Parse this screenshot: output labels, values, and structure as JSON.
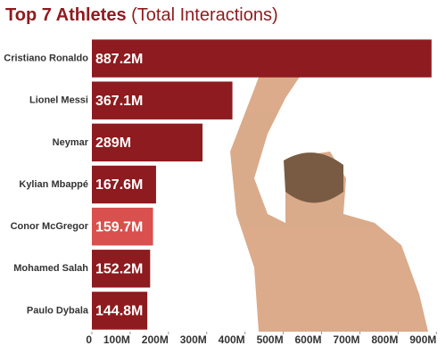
{
  "chart_data": {
    "type": "hbar",
    "title": "Top 7 Athletes",
    "subtitle": "(Total Interactions)",
    "categories": [
      "Cristiano Ronaldo",
      "Lionel Messi",
      "Neymar",
      "Kylian Mbappé",
      "Conor McGregor",
      "Mohamed Salah",
      "Paulo Dybala"
    ],
    "values": [
      887.2,
      367.1,
      289,
      167.6,
      159.7,
      152.2,
      144.8
    ],
    "value_labels": [
      "887.2M",
      "367.1M",
      "289M",
      "167.6M",
      "159.7M",
      "152.2M",
      "144.8M"
    ],
    "colors": [
      "#8e1b1f",
      "#8e1b1f",
      "#8e1b1f",
      "#8e1b1f",
      "#d9504e",
      "#8e1b1f",
      "#8e1b1f"
    ],
    "xlim": [
      0,
      925
    ],
    "xticks": [
      0,
      {
        "value": 100,
        "label": "100M"
      },
      {
        "value": 200,
        "label": "200M"
      },
      {
        "value": 300,
        "label": "300M"
      },
      {
        "value": 400,
        "label": "400M"
      },
      {
        "value": 500,
        "label": "500M"
      },
      {
        "value": 600,
        "label": "600M"
      },
      {
        "value": 700,
        "label": "700M"
      },
      {
        "value": 800,
        "label": "800M"
      },
      {
        "value": 900,
        "label": "900M"
      }
    ]
  }
}
